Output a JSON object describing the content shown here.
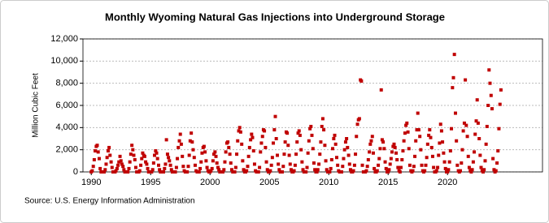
{
  "chart_data": {
    "type": "scatter",
    "title": "Monthly Wyoming Natural Gas Injections into Underground Storage",
    "y_label": "Million Cubic Feet",
    "source": "Source: U.S. Energy Information Administration",
    "xlim": [
      1989.3,
      2028
    ],
    "xticks": [
      1990,
      1995,
      2000,
      2005,
      2010,
      2015,
      2020
    ],
    "ylim": [
      0,
      12000
    ],
    "yticks": [
      0,
      {
        "value": 2000,
        "label": "2,000"
      },
      {
        "value": 4000,
        "label": "4,000"
      },
      {
        "value": 6000,
        "label": "6,000"
      },
      {
        "value": 8000,
        "label": "8,000"
      },
      {
        "value": 10000,
        "label": "10,000"
      },
      {
        "value": 12000,
        "label": "12,000"
      }
    ],
    "grid": true,
    "color": "#c00000",
    "x": [
      1990,
      1990.08,
      1990.17,
      1990.25,
      1990.33,
      1990.42,
      1990.5,
      1990.58,
      1990.67,
      1990.75,
      1990.83,
      1990.92,
      1991,
      1991.08,
      1991.17,
      1991.25,
      1991.33,
      1991.42,
      1991.5,
      1991.58,
      1991.67,
      1991.75,
      1991.83,
      1991.92,
      1992,
      1992.08,
      1992.17,
      1992.25,
      1992.33,
      1992.42,
      1992.5,
      1992.58,
      1992.67,
      1992.75,
      1992.83,
      1992.92,
      1993,
      1993.08,
      1993.17,
      1993.25,
      1993.33,
      1993.42,
      1993.5,
      1993.58,
      1993.67,
      1993.75,
      1993.83,
      1993.92,
      1994,
      1994.08,
      1994.17,
      1994.25,
      1994.33,
      1994.42,
      1994.5,
      1994.58,
      1994.67,
      1994.75,
      1994.83,
      1994.92,
      1995,
      1995.08,
      1995.17,
      1995.25,
      1995.33,
      1995.42,
      1995.5,
      1995.58,
      1995.67,
      1995.75,
      1995.83,
      1995.92,
      1996,
      1996.08,
      1996.17,
      1996.25,
      1996.33,
      1996.42,
      1996.5,
      1996.58,
      1996.67,
      1996.75,
      1996.83,
      1996.92,
      1997,
      1997.08,
      1997.17,
      1997.25,
      1997.33,
      1997.42,
      1997.5,
      1997.58,
      1997.67,
      1997.75,
      1997.83,
      1997.92,
      1998,
      1998.08,
      1998.17,
      1998.25,
      1998.33,
      1998.42,
      1998.5,
      1998.58,
      1998.67,
      1998.75,
      1998.83,
      1998.92,
      1999,
      1999.08,
      1999.17,
      1999.25,
      1999.33,
      1999.42,
      1999.5,
      1999.58,
      1999.67,
      1999.75,
      1999.83,
      1999.92,
      2000,
      2000.08,
      2000.17,
      2000.25,
      2000.33,
      2000.42,
      2000.5,
      2000.58,
      2000.67,
      2000.75,
      2000.83,
      2000.92,
      2001,
      2001.08,
      2001.17,
      2001.25,
      2001.33,
      2001.42,
      2001.5,
      2001.58,
      2001.67,
      2001.75,
      2001.83,
      2001.92,
      2002,
      2002.08,
      2002.17,
      2002.25,
      2002.33,
      2002.42,
      2002.5,
      2002.58,
      2002.67,
      2002.75,
      2002.83,
      2002.92,
      2003,
      2003.08,
      2003.17,
      2003.25,
      2003.33,
      2003.42,
      2003.5,
      2003.58,
      2003.67,
      2003.75,
      2003.83,
      2003.92,
      2004,
      2004.08,
      2004.17,
      2004.25,
      2004.33,
      2004.42,
      2004.5,
      2004.58,
      2004.67,
      2004.75,
      2004.83,
      2004.92,
      2005,
      2005.08,
      2005.17,
      2005.25,
      2005.33,
      2005.42,
      2005.5,
      2005.58,
      2005.67,
      2005.75,
      2005.83,
      2005.92,
      2006,
      2006.08,
      2006.17,
      2006.25,
      2006.33,
      2006.42,
      2006.5,
      2006.58,
      2006.67,
      2006.75,
      2006.83,
      2006.92,
      2007,
      2007.08,
      2007.17,
      2007.25,
      2007.33,
      2007.42,
      2007.5,
      2007.58,
      2007.67,
      2007.75,
      2007.83,
      2007.92,
      2008,
      2008.08,
      2008.17,
      2008.25,
      2008.33,
      2008.42,
      2008.5,
      2008.58,
      2008.67,
      2008.75,
      2008.83,
      2008.92,
      2009,
      2009.08,
      2009.17,
      2009.25,
      2009.33,
      2009.42,
      2009.5,
      2009.58,
      2009.67,
      2009.75,
      2009.83,
      2009.92,
      2010,
      2010.08,
      2010.17,
      2010.25,
      2010.33,
      2010.42,
      2010.5,
      2010.58,
      2010.67,
      2010.75,
      2010.83,
      2010.92,
      2011,
      2011.08,
      2011.17,
      2011.25,
      2011.33,
      2011.42,
      2011.5,
      2011.58,
      2011.67,
      2011.75,
      2011.83,
      2011.92,
      2012,
      2012.08,
      2012.17,
      2012.25,
      2012.33,
      2012.42,
      2012.5,
      2012.58,
      2012.67,
      2012.75,
      2012.83,
      2012.92,
      2013,
      2013.08,
      2013.17,
      2013.25,
      2013.33,
      2013.42,
      2013.5,
      2013.58,
      2013.67,
      2013.75,
      2013.83,
      2013.92,
      2014,
      2014.08,
      2014.17,
      2014.25,
      2014.33,
      2014.42,
      2014.5,
      2014.58,
      2014.67,
      2014.75,
      2014.83,
      2014.92,
      2015,
      2015.08,
      2015.17,
      2015.25,
      2015.33,
      2015.42,
      2015.5,
      2015.58,
      2015.67,
      2015.75,
      2015.83,
      2015.92,
      2016,
      2016.08,
      2016.17,
      2016.25,
      2016.33,
      2016.42,
      2016.5,
      2016.58,
      2016.67,
      2016.75,
      2016.83,
      2016.92,
      2017,
      2017.08,
      2017.17,
      2017.25,
      2017.33,
      2017.42,
      2017.5,
      2017.58,
      2017.67,
      2017.75,
      2017.83,
      2017.92,
      2018,
      2018.08,
      2018.17,
      2018.25,
      2018.33,
      2018.42,
      2018.5,
      2018.58,
      2018.67,
      2018.75,
      2018.83,
      2018.92,
      2019,
      2019.08,
      2019.17,
      2019.25,
      2019.33,
      2019.42,
      2019.5,
      2019.58,
      2019.67,
      2019.75,
      2019.83,
      2019.92,
      2020,
      2020.08,
      2020.17,
      2020.25,
      2020.33,
      2020.42,
      2020.5,
      2020.58,
      2020.67,
      2020.75,
      2020.83,
      2020.92,
      2021,
      2021.08,
      2021.17,
      2021.25,
      2021.33,
      2021.42,
      2021.5,
      2021.58,
      2021.67,
      2021.75,
      2021.83,
      2021.92,
      2022,
      2022.08,
      2022.17,
      2022.25,
      2022.33,
      2022.42,
      2022.5,
      2022.58,
      2022.67,
      2022.75,
      2022.83,
      2022.92,
      2023,
      2023.08,
      2023.17,
      2023.25,
      2023.33,
      2023.42,
      2023.5,
      2023.58,
      2023.67,
      2023.75,
      2023.83,
      2023.92,
      2024,
      2024.08,
      2024.17,
      2024.25,
      2024.33,
      2024.42,
      2024.5
    ],
    "values": [
      0,
      100,
      500,
      1100,
      1900,
      2300,
      2400,
      1800,
      1200,
      300,
      0,
      0,
      0,
      0,
      200,
      700,
      1300,
      1900,
      2200,
      1500,
      900,
      400,
      0,
      0,
      0,
      100,
      300,
      600,
      900,
      1400,
      1000,
      700,
      500,
      200,
      0,
      0,
      0,
      0,
      300,
      900,
      1600,
      2400,
      2000,
      1500,
      1100,
      400,
      0,
      0,
      0,
      100,
      600,
      1200,
      1700,
      1500,
      1400,
      900,
      700,
      300,
      0,
      0,
      0,
      0,
      200,
      800,
      1500,
      1900,
      1700,
      1200,
      600,
      200,
      0,
      0,
      0,
      0,
      300,
      700,
      2900,
      1600,
      1300,
      1000,
      600,
      200,
      0,
      0,
      0,
      0,
      400,
      1200,
      2200,
      2800,
      3400,
      2500,
      1400,
      500,
      100,
      0,
      0,
      0,
      500,
      1500,
      2800,
      3500,
      2700,
      2000,
      1300,
      600,
      100,
      0,
      0,
      0,
      300,
      900,
      1700,
      2200,
      2300,
      1800,
      1000,
      400,
      100,
      0,
      0,
      100,
      300,
      1000,
      1600,
      1800,
      1400,
      800,
      400,
      200,
      0,
      0,
      0,
      0,
      200,
      900,
      1800,
      2600,
      2700,
      2200,
      1600,
      800,
      200,
      0,
      0,
      0,
      400,
      1600,
      2800,
      3700,
      4000,
      3600,
      2500,
      1000,
      200,
      0,
      0,
      100,
      500,
      1400,
      2200,
      2900,
      3400,
      3100,
      1900,
      700,
      100,
      0,
      0,
      0,
      400,
      1800,
      2600,
      3200,
      3800,
      3700,
      2200,
      900,
      200,
      0,
      0,
      100,
      600,
      1300,
      2600,
      3800,
      5000,
      3000,
      1500,
      700,
      200,
      0,
      0,
      0,
      500,
      1600,
      2700,
      3600,
      3500,
      2400,
      1500,
      700,
      200,
      0,
      0,
      100,
      600,
      1600,
      2700,
      3500,
      3700,
      3300,
      2000,
      900,
      200,
      0,
      0,
      0,
      400,
      1700,
      2800,
      3900,
      4100,
      3300,
      2100,
      800,
      200,
      0,
      0,
      200,
      700,
      1600,
      2700,
      4100,
      4800,
      3800,
      2400,
      1000,
      200,
      0,
      0,
      0,
      300,
      1100,
      2100,
      3000,
      3300,
      2500,
      1300,
      600,
      100,
      0,
      0,
      0,
      500,
      1200,
      2000,
      2700,
      3000,
      2200,
      1500,
      700,
      200,
      0,
      0,
      100,
      600,
      1600,
      3200,
      4300,
      4700,
      4800,
      8300,
      8200,
      600,
      0,
      0,
      0,
      100,
      500,
      1100,
      1800,
      2500,
      2800,
      3200,
      1700,
      300,
      0,
      0,
      100,
      600,
      1200,
      2100,
      7400,
      2900,
      2700,
      2100,
      900,
      300,
      0,
      0,
      200,
      700,
      1200,
      1800,
      2300,
      2500,
      2200,
      1700,
      1100,
      400,
      100,
      0,
      400,
      1100,
      1900,
      2800,
      3500,
      4200,
      4400,
      3600,
      2100,
      600,
      100,
      0,
      100,
      500,
      1400,
      2800,
      3800,
      5300,
      3800,
      3200,
      2000,
      600,
      100,
      0,
      100,
      600,
      1300,
      2500,
      3300,
      3800,
      3100,
      2200,
      1400,
      400,
      0,
      0,
      100,
      400,
      1500,
      2600,
      4300,
      3700,
      2700,
      1700,
      900,
      300,
      0,
      0,
      200,
      900,
      1900,
      3900,
      7600,
      8500,
      10600,
      5300,
      2800,
      600,
      100,
      0,
      100,
      800,
      2000,
      3700,
      4400,
      8300,
      4200,
      3200,
      1400,
      400,
      100,
      0,
      200,
      900,
      1800,
      3400,
      4600,
      6500,
      4400,
      3000,
      1500,
      400,
      100,
      0,
      200,
      1000,
      2500,
      4100,
      6000,
      9200,
      8000,
      6900,
      5700,
      1200,
      200,
      0,
      100,
      800,
      1900,
      3900,
      6100,
      7400
    ]
  }
}
